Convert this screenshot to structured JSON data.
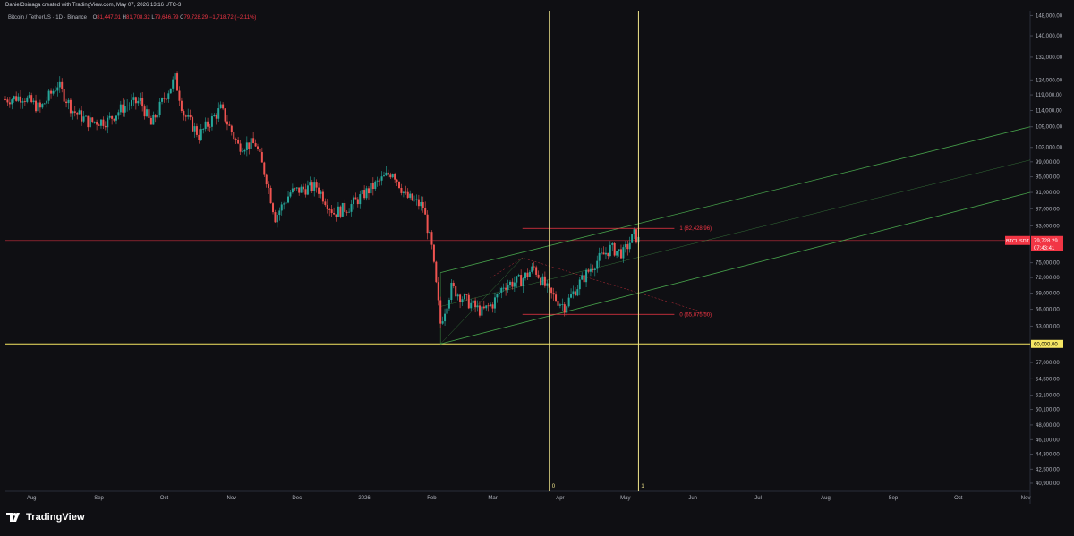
{
  "header": {
    "attribution": "DanielOsinaga created with TradingView.com, May 07, 2026 13:16 UTC-3"
  },
  "ohlc": {
    "symbol": "Bitcoin / TetherUS · 1D · Binance",
    "o_label": "O",
    "o_value": "81,447.01",
    "h_label": "H",
    "h_value": "81,708.32",
    "l_label": "L",
    "l_value": "79,646.79",
    "c_label": "C",
    "c_value": "79,728.29",
    "change": "−1,718.72 (−2.11%)"
  },
  "price_axis": {
    "ticks": [
      "148,000.00",
      "140,000.00",
      "132,000.00",
      "124,000.00",
      "119,000.00",
      "114,000.00",
      "109,000.00",
      "103,000.00",
      "99,000.00",
      "95,000.00",
      "91,000.00",
      "87,000.00",
      "83,000.00",
      "75,000.00",
      "72,000.00",
      "69,000.00",
      "66,000.00",
      "63,000.00",
      "57,000.00",
      "54,500.00",
      "52,100.00",
      "50,100.00",
      "48,000.00",
      "46,100.00",
      "44,300.00",
      "42,500.00",
      "40,900.00"
    ],
    "current_symbol": "BTCUSDT",
    "current_price": "79,728.29",
    "countdown": "07:43:41",
    "highlight_level": "60,000.00"
  },
  "time_axis": {
    "labels": [
      "Aug",
      "Sep",
      "Oct",
      "Nov",
      "Dec",
      "2026",
      "Feb",
      "Mar",
      "Apr",
      "May",
      "Jun",
      "Jul",
      "Aug",
      "Sep",
      "Oct",
      "Nov"
    ]
  },
  "drawings": {
    "fib_top_label": "1 (82,428.96)",
    "fib_bottom_label": "0 (65,075.50)",
    "vline_label_0": "0",
    "vline_label_1": "1",
    "colors": {
      "fib": "#f23645",
      "channel": "#4caf50",
      "vline": "#f0e68c",
      "hline": "#f5e663",
      "price_line": "#f23645"
    }
  },
  "footer": {
    "brand": "TradingView"
  },
  "chart_data": {
    "type": "candlestick",
    "title": "Bitcoin / TetherUS · 1D · Binance",
    "y_scale": "log",
    "ylim": [
      40900,
      148000
    ],
    "x_range": [
      "2025-07-20",
      "2026-11-03"
    ],
    "series": [
      {
        "name": "close_path",
        "points": [
          [
            "2025-07-20",
            117500
          ],
          [
            "2025-07-28",
            118500
          ],
          [
            "2025-08-05",
            114500
          ],
          [
            "2025-08-13",
            122500
          ],
          [
            "2025-08-20",
            114000
          ],
          [
            "2025-08-27",
            110500
          ],
          [
            "2025-09-05",
            110800
          ],
          [
            "2025-09-13",
            115500
          ],
          [
            "2025-09-20",
            117000
          ],
          [
            "2025-09-25",
            109500
          ],
          [
            "2025-10-01",
            118000
          ],
          [
            "2025-10-06",
            124500
          ],
          [
            "2025-10-10",
            113000
          ],
          [
            "2025-10-17",
            106500
          ],
          [
            "2025-10-27",
            114500
          ],
          [
            "2025-11-04",
            103500
          ],
          [
            "2025-11-12",
            104000
          ],
          [
            "2025-11-17",
            94500
          ],
          [
            "2025-11-21",
            85000
          ],
          [
            "2025-11-28",
            91000
          ],
          [
            "2025-12-05",
            92000
          ],
          [
            "2025-12-10",
            92500
          ],
          [
            "2025-12-18",
            86000
          ],
          [
            "2025-12-25",
            87500
          ],
          [
            "2026-01-05",
            92500
          ],
          [
            "2026-01-14",
            96500
          ],
          [
            "2026-01-20",
            90000
          ],
          [
            "2026-01-28",
            87500
          ],
          [
            "2026-02-01",
            78000
          ],
          [
            "2026-02-05",
            63500
          ],
          [
            "2026-02-10",
            70000
          ],
          [
            "2026-02-17",
            67500
          ],
          [
            "2026-02-24",
            65500
          ],
          [
            "2026-03-01",
            67000
          ],
          [
            "2026-03-06",
            70500
          ],
          [
            "2026-03-14",
            71500
          ],
          [
            "2026-03-20",
            74000
          ],
          [
            "2026-03-27",
            69000
          ],
          [
            "2026-04-03",
            66500
          ],
          [
            "2026-04-10",
            71000
          ],
          [
            "2026-04-17",
            75000
          ],
          [
            "2026-04-24",
            78000
          ],
          [
            "2026-04-30",
            77000
          ],
          [
            "2026-05-05",
            81000
          ],
          [
            "2026-05-07",
            79728
          ]
        ]
      }
    ],
    "annotations": {
      "current_price": 79728.29,
      "horizontal_level": 60000,
      "fib_retracement": {
        "level_1": 82428.96,
        "level_0": 65075.5,
        "from_date": "2026-03-27",
        "to_date": "2026-05-07"
      },
      "vertical_lines": [
        {
          "label": "0",
          "date": "2026-03-27"
        },
        {
          "label": "1",
          "date": "2026-05-07"
        }
      ],
      "parallel_channel": {
        "start_date": "2026-02-05",
        "end_date": "2026-11-03",
        "upper": [
          73000,
          109000
        ],
        "middle": [
          66500,
          99500
        ],
        "lower": [
          60000,
          91000
        ]
      }
    },
    "xlabel": "",
    "ylabel": "",
    "grid": false
  }
}
